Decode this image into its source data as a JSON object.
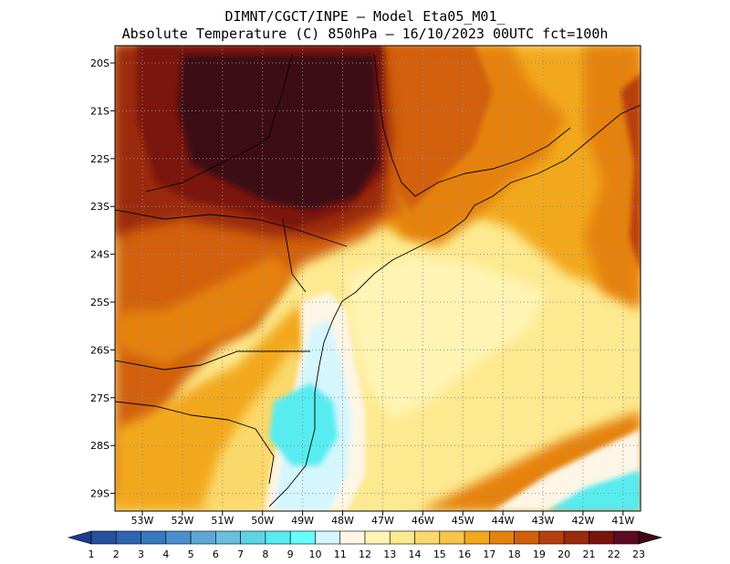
{
  "header": {
    "line1": "DIMNT/CGCT/INPE –  Model Eta05_M01_",
    "line2": "Absolute Temperature (C) 850hPa –  16/10/2023 00UTC fct=100h"
  },
  "map": {
    "lat_labels": [
      "20S",
      "21S",
      "22S",
      "23S",
      "24S",
      "25S",
      "26S",
      "27S",
      "28S",
      "29S"
    ],
    "lon_labels": [
      "53W",
      "52W",
      "51W",
      "50W",
      "49W",
      "48W",
      "47W",
      "46W",
      "45W",
      "44W",
      "43W",
      "42W",
      "41W"
    ],
    "grid": "dotted",
    "field": "temperature_850hPa"
  },
  "colorbar": {
    "labels": [
      "1",
      "2",
      "3",
      "4",
      "5",
      "6",
      "7",
      "8",
      "9",
      "10",
      "11",
      "12",
      "13",
      "14",
      "15",
      "16",
      "17",
      "18",
      "19",
      "20",
      "21",
      "22",
      "23"
    ],
    "colors": [
      "#1f3c8c",
      "#264f9f",
      "#2f64b0",
      "#3878be",
      "#4a8fcc",
      "#5ca7d8",
      "#68bfdf",
      "#5dd4e6",
      "#57ecf0",
      "#67ffff",
      "#d5f6fd",
      "#fdf6e6",
      "#fff4b4",
      "#fde98f",
      "#fbd86b",
      "#f7c549",
      "#f2a81c",
      "#e5820c",
      "#d2600b",
      "#b8400e",
      "#9a2a0c",
      "#7a140f",
      "#5e0a22",
      "#3d0a12"
    ]
  }
}
